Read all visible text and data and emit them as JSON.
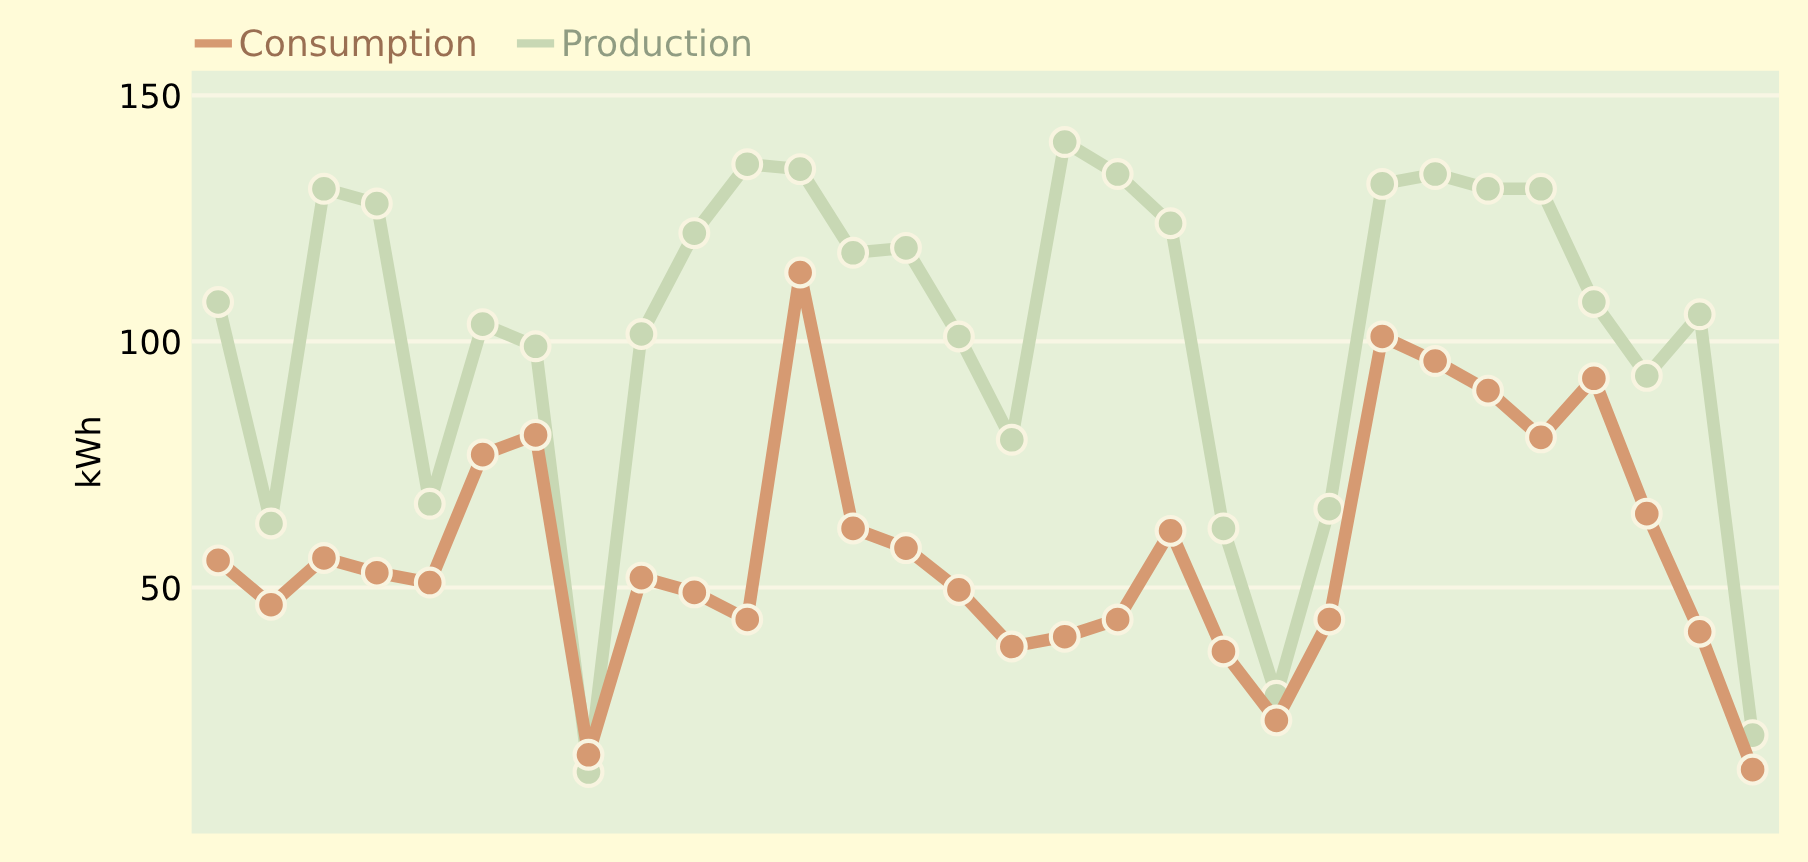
{
  "chart_data": {
    "type": "line",
    "ylabel": "kWh",
    "categories": [
      null,
      null,
      null,
      null,
      null,
      null,
      null,
      null,
      null,
      null,
      null,
      null,
      null,
      null,
      null,
      null,
      null,
      null,
      null,
      null,
      null,
      null,
      null,
      null,
      null,
      null,
      null,
      null,
      null,
      null
    ],
    "series": [
      {
        "name": "Consumption",
        "color": "#d69a72",
        "values": [
          55.5,
          46.5,
          56,
          53,
          51,
          77,
          81,
          16,
          52,
          49,
          43.5,
          114,
          62,
          58,
          49.5,
          38,
          40,
          43.5,
          61.5,
          37,
          23,
          43.5,
          101,
          96,
          90,
          80.5,
          92.5,
          65,
          41,
          13
        ]
      },
      {
        "name": "Production",
        "color": "#c8d8b4",
        "values": [
          108,
          63,
          131,
          128,
          67,
          103.5,
          99,
          12.5,
          101.5,
          122,
          136,
          135,
          118,
          119,
          101,
          80,
          140.5,
          134,
          124,
          62,
          28,
          66,
          132,
          134,
          131,
          131,
          108,
          93,
          105.5,
          20
        ]
      }
    ],
    "ylim": [
      0,
      155
    ],
    "yticks": [
      50,
      100,
      150
    ],
    "grid": "y",
    "legend": "top left",
    "tick_labels": "y",
    "marker": "circle",
    "line_style": "solid"
  }
}
